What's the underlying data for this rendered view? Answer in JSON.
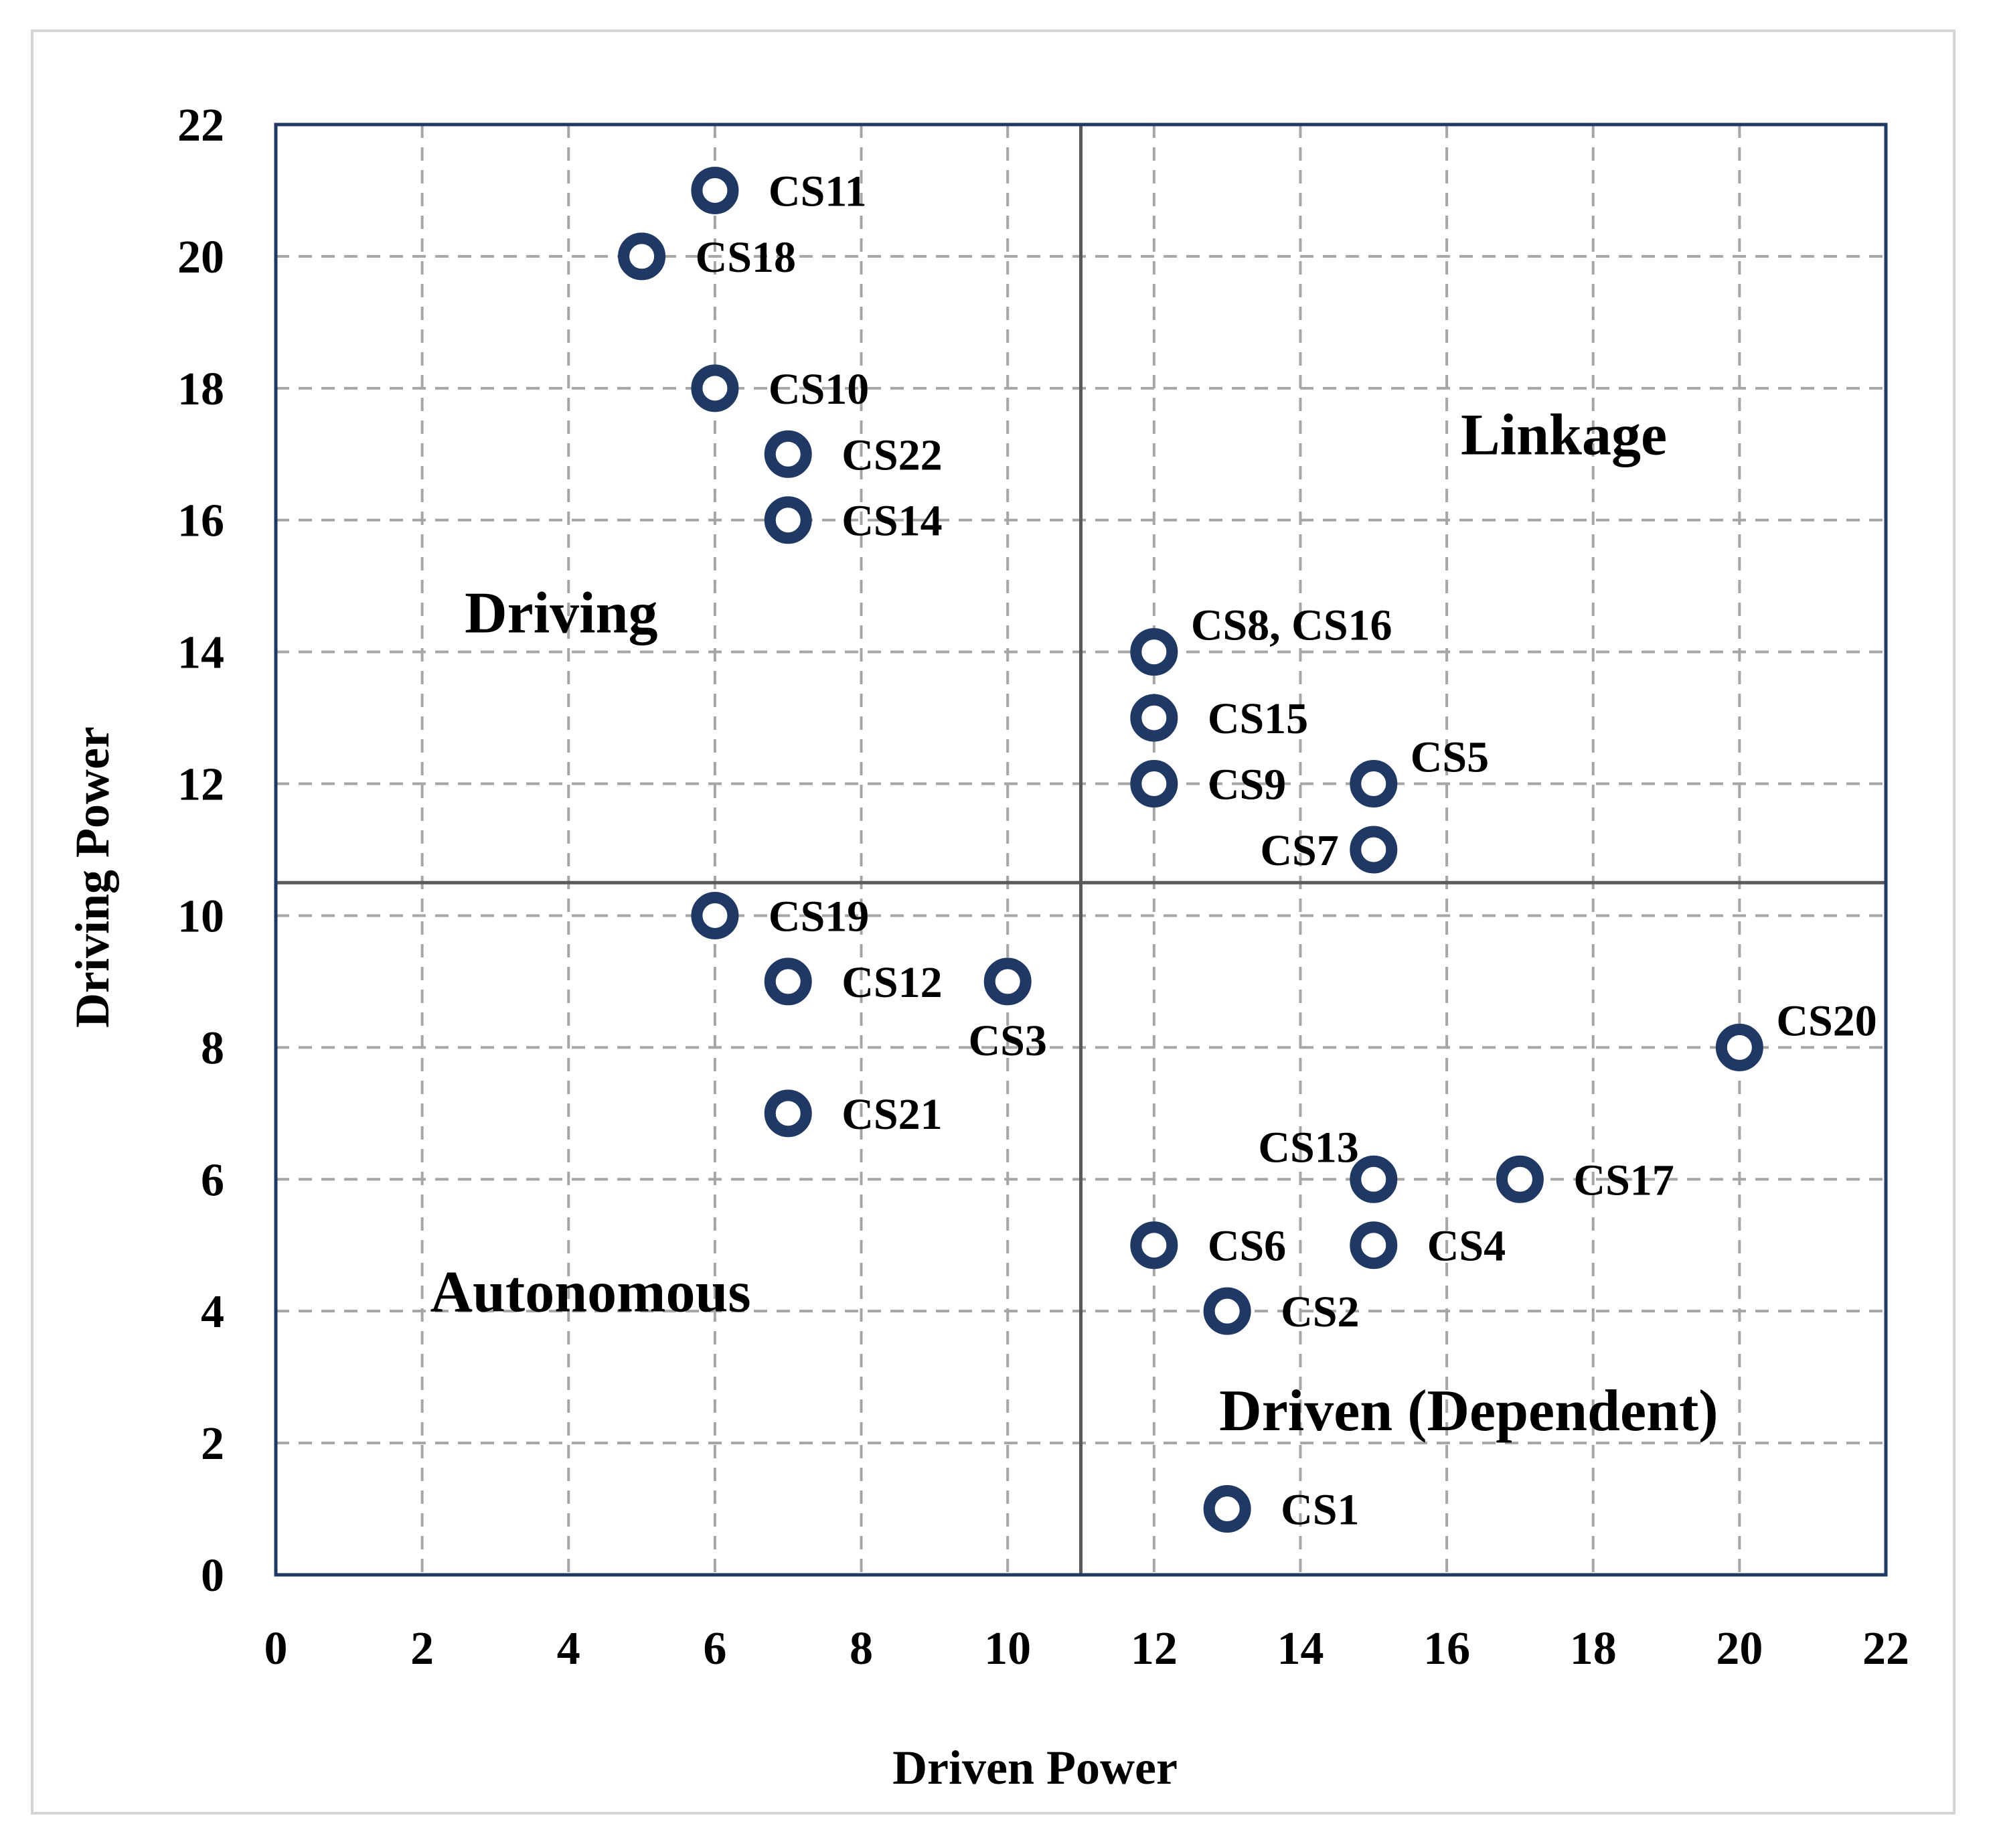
{
  "chart_data": {
    "type": "scatter",
    "title": "",
    "xlabel": "Driven Power",
    "ylabel": "Driving Power",
    "xlim": [
      0,
      22
    ],
    "ylim": [
      0,
      22
    ],
    "xticks": [
      0,
      2,
      4,
      6,
      8,
      10,
      12,
      14,
      16,
      18,
      20,
      22
    ],
    "yticks": [
      0,
      2,
      4,
      6,
      8,
      10,
      12,
      14,
      16,
      18,
      20,
      22
    ],
    "grid": true,
    "divider": {
      "x": 11,
      "y": 10.5
    },
    "quadrants": [
      {
        "name": "Driving",
        "x": 3.9,
        "y": 14.6
      },
      {
        "name": "Linkage",
        "x": 17.6,
        "y": 17.3
      },
      {
        "name": "Autonomous",
        "x": 4.3,
        "y": 4.3
      },
      {
        "name": "Driven (Dependent)",
        "x": 16.3,
        "y": 2.5
      }
    ],
    "points": [
      {
        "label": "CS11",
        "x": 6,
        "y": 21,
        "anchor": "right"
      },
      {
        "label": "CS18",
        "x": 5,
        "y": 20,
        "anchor": "right"
      },
      {
        "label": "CS10",
        "x": 6,
        "y": 18,
        "anchor": "right"
      },
      {
        "label": "CS22",
        "x": 7,
        "y": 17,
        "anchor": "right"
      },
      {
        "label": "CS14",
        "x": 7,
        "y": 16,
        "anchor": "right"
      },
      {
        "label": "CS8, CS16",
        "x": 12,
        "y": 14,
        "anchor": "upper-right"
      },
      {
        "label": "CS15",
        "x": 12,
        "y": 13,
        "anchor": "right"
      },
      {
        "label": "CS9",
        "x": 12,
        "y": 12,
        "anchor": "right"
      },
      {
        "label": "CS5",
        "x": 15,
        "y": 12,
        "anchor": "upper-right"
      },
      {
        "label": "CS7",
        "x": 15,
        "y": 11,
        "anchor": "left"
      },
      {
        "label": "CS19",
        "x": 6,
        "y": 10,
        "anchor": "right"
      },
      {
        "label": "CS12",
        "x": 7,
        "y": 9,
        "anchor": "right"
      },
      {
        "label": "CS3",
        "x": 10,
        "y": 9,
        "anchor": "below"
      },
      {
        "label": "CS21",
        "x": 7,
        "y": 7,
        "anchor": "right"
      },
      {
        "label": "CS20",
        "x": 20,
        "y": 8,
        "anchor": "upper-right"
      },
      {
        "label": "CS13",
        "x": 15,
        "y": 6,
        "anchor": "upper-left"
      },
      {
        "label": "CS17",
        "x": 17,
        "y": 6,
        "anchor": "right"
      },
      {
        "label": "CS6",
        "x": 12,
        "y": 5,
        "anchor": "right"
      },
      {
        "label": "CS4",
        "x": 15,
        "y": 5,
        "anchor": "right"
      },
      {
        "label": "CS2",
        "x": 13,
        "y": 4,
        "anchor": "right"
      },
      {
        "label": "CS1",
        "x": 13,
        "y": 1,
        "anchor": "right"
      }
    ]
  },
  "colors": {
    "marker": "#1f3864",
    "frame": "#1f3864",
    "grid": "#a6a6a6",
    "divider": "#595959"
  }
}
